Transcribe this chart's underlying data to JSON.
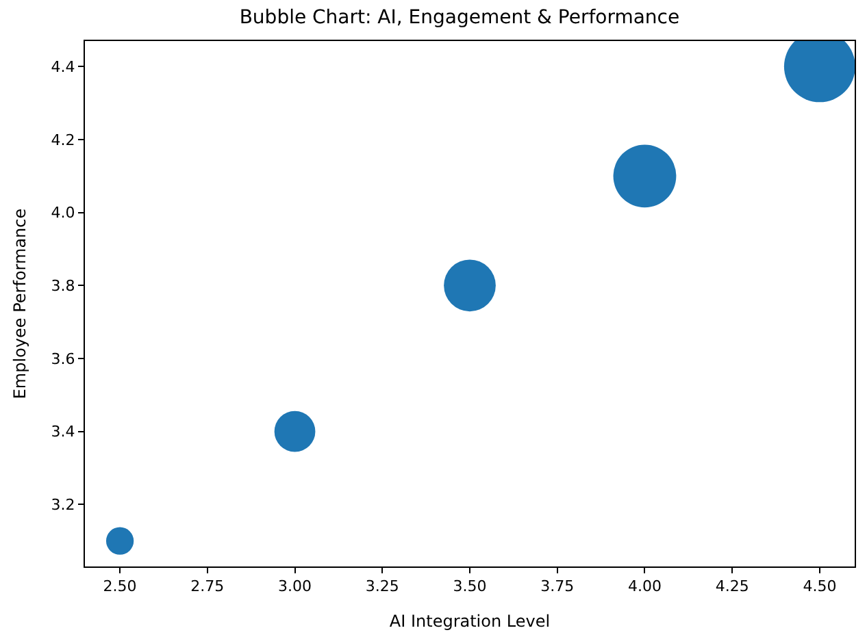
{
  "chart_data": {
    "type": "bubble",
    "title": "Bubble Chart: AI, Engagement & Performance",
    "xlabel": "AI Integration Level",
    "ylabel": "Employee Performance",
    "x": [
      2.5,
      3.0,
      3.5,
      4.0,
      4.5
    ],
    "values": [
      3.1,
      3.4,
      3.8,
      4.1,
      4.4
    ],
    "sizes": [
      0.15,
      0.33,
      0.53,
      0.78,
      1
    ],
    "color": "#1f77b4",
    "xlim": [
      2.4,
      4.6
    ],
    "xticks": [
      {
        "value": 2.5,
        "label": "2.50"
      },
      {
        "value": 2.75,
        "label": "2.75"
      },
      {
        "value": 3.0,
        "label": "3.00"
      },
      {
        "value": 3.25,
        "label": "3.25"
      },
      {
        "value": 3.5,
        "label": "3.50"
      },
      {
        "value": 3.75,
        "label": "3.75"
      },
      {
        "value": 4.0,
        "label": "4.00"
      },
      {
        "value": 4.25,
        "label": "4.25"
      },
      {
        "value": 4.5,
        "label": "4.50"
      }
    ],
    "ylim": [
      3.03,
      4.47
    ],
    "yticks": [
      {
        "value": 3.2,
        "label": "3.2"
      },
      {
        "value": 3.4,
        "label": "3.4"
      },
      {
        "value": 3.6,
        "label": "3.6"
      },
      {
        "value": 3.8,
        "label": "3.8"
      },
      {
        "value": 4.0,
        "label": "4.0"
      },
      {
        "value": 4.2,
        "label": "4.2"
      },
      {
        "value": 4.4,
        "label": "4.4"
      }
    ]
  }
}
